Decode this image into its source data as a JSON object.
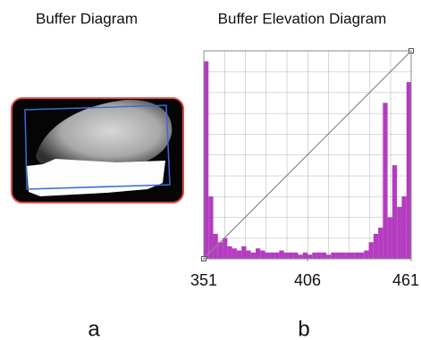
{
  "buffer_diagram": {
    "title": "Buffer Diagram",
    "caption": "a"
  },
  "chart_data": {
    "type": "histogram",
    "title": "Buffer Elevation Diagram",
    "bins": [
      351,
      353.5,
      356,
      358.5,
      361,
      363.5,
      366,
      368.5,
      371,
      373.5,
      376,
      378.5,
      381,
      383.5,
      386,
      388.5,
      391,
      393.5,
      396,
      398.5,
      401,
      403.5,
      406,
      408.5,
      411,
      413.5,
      416,
      418.5,
      421,
      423.5,
      426,
      428.5,
      431,
      433.5,
      436,
      438.5,
      441,
      443.5,
      446,
      448.5,
      451,
      453.5,
      456,
      458.5,
      461
    ],
    "values": [
      95,
      30,
      12,
      8,
      10,
      6,
      5,
      4,
      6,
      4,
      3,
      5,
      4,
      3,
      3,
      3,
      4,
      3,
      3,
      3,
      2,
      3,
      2,
      3,
      3,
      3,
      2,
      3,
      3,
      3,
      3,
      3,
      3,
      3,
      4,
      8,
      12,
      15,
      75,
      20,
      45,
      25,
      30,
      85
    ],
    "color": "#b43cc0",
    "xlim": [
      351,
      461
    ],
    "ylim": [
      0,
      100
    ],
    "xticks": [
      351,
      406,
      461
    ],
    "grid": true,
    "caption": "b"
  }
}
